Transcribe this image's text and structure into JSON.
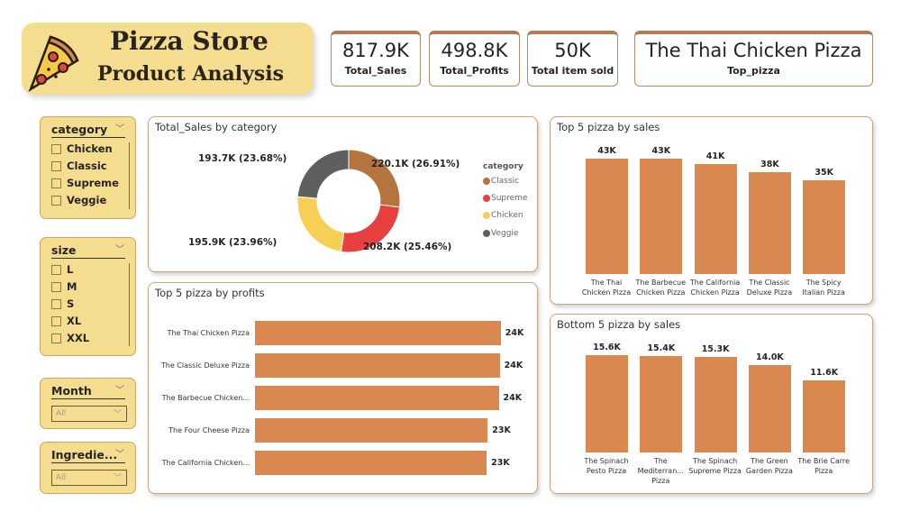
{
  "header": {
    "title_line1": "Pizza Store",
    "title_line2": "Product Analysis",
    "logo": "pizza-slice-icon"
  },
  "kpis": [
    {
      "value": "817.9K",
      "label": "Total_Sales"
    },
    {
      "value": "498.8K",
      "label": "Total_Profits"
    },
    {
      "value": "50K",
      "label": "Total item sold"
    },
    {
      "value": "The Thai Chicken Pizza",
      "label": "Top_pizza"
    }
  ],
  "slicers": {
    "category": {
      "title": "category",
      "items": [
        "Chicken",
        "Classic",
        "Supreme",
        "Veggie"
      ]
    },
    "size": {
      "title": "size",
      "items": [
        "L",
        "M",
        "S",
        "XL",
        "XXL"
      ]
    },
    "month": {
      "title": "Month",
      "value": "All"
    },
    "ingredients": {
      "title": "Ingredie...",
      "value": "All"
    }
  },
  "colors": {
    "bar": "#D9894F",
    "Classic": "#B5733D",
    "Supreme": "#E84040",
    "Chicken": "#F7CF55",
    "Veggie": "#5F5F5F",
    "panel_border": "#C9A27E",
    "title_bg": "#F5DD8F"
  },
  "chart_data": [
    {
      "type": "pie",
      "title": "Total_Sales by category",
      "legend_title": "category",
      "legend_position": "right",
      "slices": [
        {
          "name": "Classic",
          "value": 220.1,
          "label": "220.1K (26.91%)"
        },
        {
          "name": "Supreme",
          "value": 208.2,
          "label": "208.2K (25.46%)"
        },
        {
          "name": "Chicken",
          "value": 195.9,
          "label": "195.9K (23.96%)"
        },
        {
          "name": "Veggie",
          "value": 193.7,
          "label": "193.7K (23.68%)"
        }
      ]
    },
    {
      "type": "bar",
      "orientation": "horizontal",
      "title": "Top 5 pizza by profits",
      "categories": [
        "The Thai Chicken Pizza",
        "The Classic Deluxe Pizza",
        "The Barbecue Chicken...",
        "The Four Cheese Pizza",
        "The California Chicken..."
      ],
      "values": [
        24,
        24,
        24,
        23,
        23
      ],
      "labels": [
        "24K",
        "24K",
        "24K",
        "23K",
        "23K"
      ]
    },
    {
      "type": "bar",
      "title": "Top 5 pizza by sales",
      "categories": [
        "The Thai Chicken Pizza",
        "The Barbecue Chicken Pizza",
        "The California Chicken Pizza",
        "The Classic Deluxe Pizza",
        "The Spicy Italian Pizza"
      ],
      "values": [
        43,
        43,
        41,
        38,
        35
      ],
      "labels": [
        "43K",
        "43K",
        "41K",
        "38K",
        "35K"
      ]
    },
    {
      "type": "bar",
      "title": "Bottom 5 pizza by sales",
      "categories": [
        "The Spinach Pesto Pizza",
        "The Mediterran... Pizza",
        "The Spinach Supreme Pizza",
        "The Green Garden Pizza",
        "The Brie Carre Pizza"
      ],
      "values": [
        15.6,
        15.4,
        15.3,
        14.0,
        11.6
      ],
      "labels": [
        "15.6K",
        "15.4K",
        "15.3K",
        "14.0K",
        "11.6K"
      ]
    }
  ]
}
